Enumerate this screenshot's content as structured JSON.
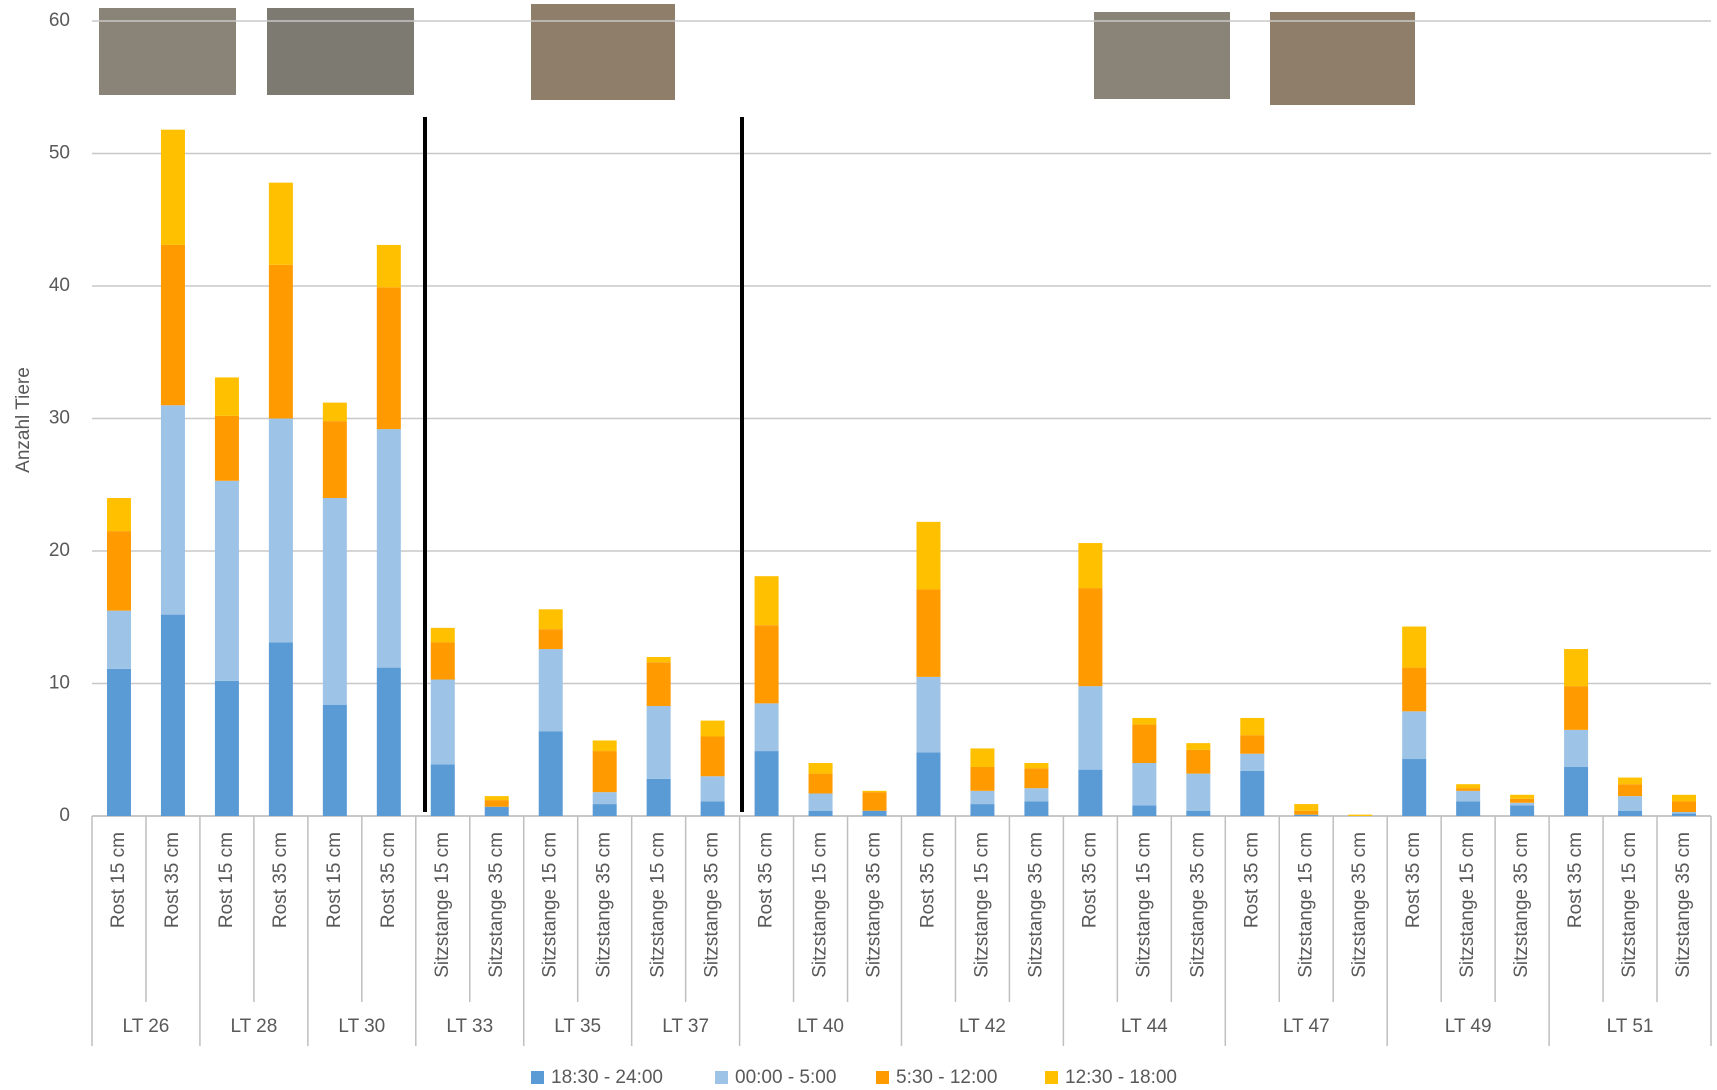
{
  "chart_data": {
    "type": "stacked_bar",
    "y_label": "Anzahl Tiere",
    "groups": [
      {
        "label": "LT 26",
        "categories": [
          "Rost 15 cm",
          "Rost 35 cm"
        ]
      },
      {
        "label": "LT 28",
        "categories": [
          "Rost 15 cm",
          "Rost 35 cm"
        ]
      },
      {
        "label": "LT 30",
        "categories": [
          "Rost 15 cm",
          "Rost 35 cm"
        ]
      },
      {
        "label": "LT 33",
        "categories": [
          "Sitzstange 15 cm",
          "Sitzstange 35 cm"
        ]
      },
      {
        "label": "LT 35",
        "categories": [
          "Sitzstange 15 cm",
          "Sitzstange 35 cm"
        ]
      },
      {
        "label": "LT 37",
        "categories": [
          "Sitzstange 15 cm",
          "Sitzstange 35 cm"
        ]
      },
      {
        "label": "LT 40",
        "categories": [
          "Rost 35 cm",
          "Sitzstange 15 cm",
          "Sitzstange 35 cm"
        ]
      },
      {
        "label": "LT 42",
        "categories": [
          "Rost 35 cm",
          "Sitzstange 15 cm",
          "Sitzstange 35 cm"
        ]
      },
      {
        "label": "LT 44",
        "categories": [
          "Rost 35 cm",
          "Sitzstange 15 cm",
          "Sitzstange 35 cm"
        ]
      },
      {
        "label": "LT 47",
        "categories": [
          "Rost 35 cm",
          "Sitzstange 15 cm",
          "Sitzstange 35 cm"
        ]
      },
      {
        "label": "LT 49",
        "categories": [
          "Rost 35 cm",
          "Sitzstange 15 cm",
          "Sitzstange 35 cm"
        ]
      },
      {
        "label": "LT 51",
        "categories": [
          "Rost 35 cm",
          "Sitzstange 15 cm",
          "Sitzstange 35 cm"
        ]
      }
    ],
    "series": [
      {
        "name": "18:30 - 24:00",
        "color": "#5b9bd5",
        "values": [
          11.1,
          15.2,
          10.2,
          13.1,
          8.4,
          11.2,
          3.9,
          0.7,
          6.4,
          0.9,
          2.8,
          1.1,
          4.9,
          0.4,
          0.4,
          4.8,
          0.9,
          1.1,
          3.5,
          0.8,
          0.4,
          3.4,
          0.1,
          0,
          4.3,
          1.1,
          0.8,
          3.7,
          0.4,
          0.2
        ]
      },
      {
        "name": "00:00 - 5:00",
        "color": "#9dc3e6",
        "values": [
          4.4,
          15.8,
          15.1,
          16.9,
          15.6,
          18.0,
          6.4,
          0,
          6.2,
          0.9,
          5.5,
          1.9,
          3.6,
          1.3,
          0,
          5.7,
          1.0,
          1.0,
          6.3,
          3.2,
          2.8,
          1.3,
          0,
          0,
          3.6,
          0.8,
          0.2,
          2.8,
          1.1,
          0.1
        ]
      },
      {
        "name": "5:30 - 12:00",
        "color": "#ff9a00",
        "values": [
          6.0,
          12.1,
          4.9,
          11.6,
          5.8,
          10.7,
          2.8,
          0.5,
          1.5,
          3.1,
          3.3,
          3.0,
          5.9,
          1.5,
          1.4,
          6.6,
          1.8,
          1.5,
          7.4,
          2.9,
          1.8,
          1.4,
          0.3,
          0,
          3.3,
          0.2,
          0.3,
          3.3,
          0.9,
          0.8
        ]
      },
      {
        "name": "12:30 - 18:00",
        "color": "#ffc000",
        "values": [
          2.5,
          8.7,
          2.9,
          6.2,
          1.4,
          3.2,
          1.1,
          0.3,
          1.5,
          0.8,
          0.4,
          1.2,
          3.7,
          0.8,
          0.1,
          5.1,
          1.4,
          0.4,
          3.4,
          0.5,
          0.5,
          1.3,
          0.5,
          0.1,
          3.1,
          0.3,
          0.3,
          2.8,
          0.5,
          0.5
        ]
      }
    ],
    "ylim": [
      0,
      60
    ],
    "yticks": [
      0,
      10,
      20,
      30,
      40,
      50,
      60
    ],
    "grid": true,
    "legend": "bottom"
  }
}
